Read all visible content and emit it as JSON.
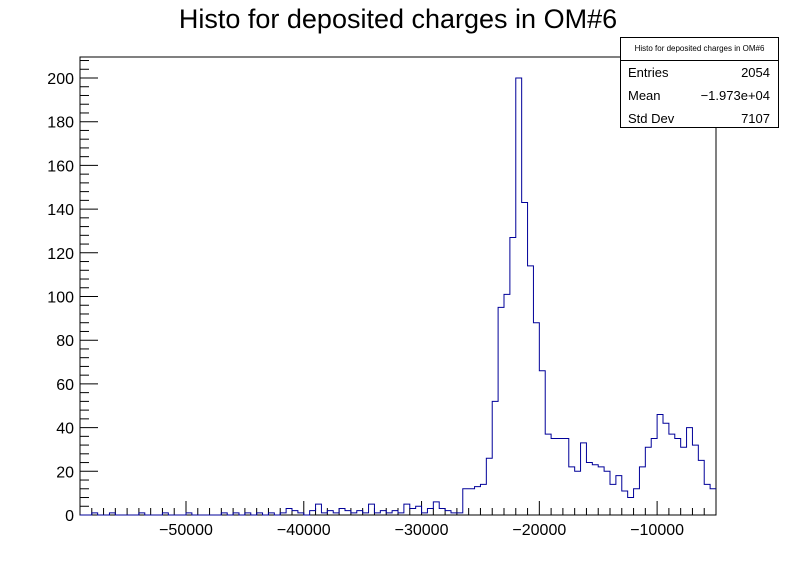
{
  "chart_data": {
    "type": "histogram",
    "title": "Histo for deposited charges in OM#6",
    "xlim": [
      -59000,
      -5000
    ],
    "ylim": [
      0,
      210
    ],
    "bin_width": 500,
    "x_ticks": [
      {
        "value": -50000,
        "label": "−50000"
      },
      {
        "value": -40000,
        "label": "−40000"
      },
      {
        "value": -30000,
        "label": "−30000"
      },
      {
        "value": -20000,
        "label": "−20000"
      },
      {
        "value": -10000,
        "label": "−10000"
      }
    ],
    "y_ticks": [
      0,
      20,
      40,
      60,
      80,
      100,
      120,
      140,
      160,
      180,
      200
    ],
    "series": [
      {
        "color": "#000099",
        "x_start": -59000,
        "values": [
          0,
          0,
          1,
          0,
          0,
          1,
          0,
          0,
          0,
          0,
          1,
          0,
          0,
          0,
          1,
          0,
          0,
          0,
          1,
          0,
          0,
          0,
          0,
          0,
          1,
          0,
          1,
          0,
          1,
          0,
          1,
          0,
          1,
          0,
          1,
          3,
          2,
          1,
          0,
          2,
          5,
          1,
          2,
          1,
          3,
          2,
          1,
          2,
          1,
          5,
          1,
          2,
          1,
          2,
          1,
          5,
          3,
          4,
          1,
          3,
          6,
          3,
          2,
          1,
          1,
          12,
          12,
          13,
          14,
          26,
          52,
          95,
          101,
          127,
          200,
          143,
          114,
          88,
          66,
          37,
          35,
          35,
          35,
          22,
          20,
          33,
          24,
          23,
          22,
          20,
          14,
          18,
          11,
          8,
          12,
          22,
          31,
          35,
          46,
          42,
          37,
          35,
          31,
          40,
          32,
          25,
          14,
          12
        ]
      }
    ],
    "stats_box": {
      "title": "Histo for deposited charges in OM#6",
      "entries_label": "Entries",
      "entries": "2054",
      "mean_label": "Mean",
      "mean": "−1.973e+04",
      "std_label": "Std Dev",
      "std": "7107"
    }
  }
}
